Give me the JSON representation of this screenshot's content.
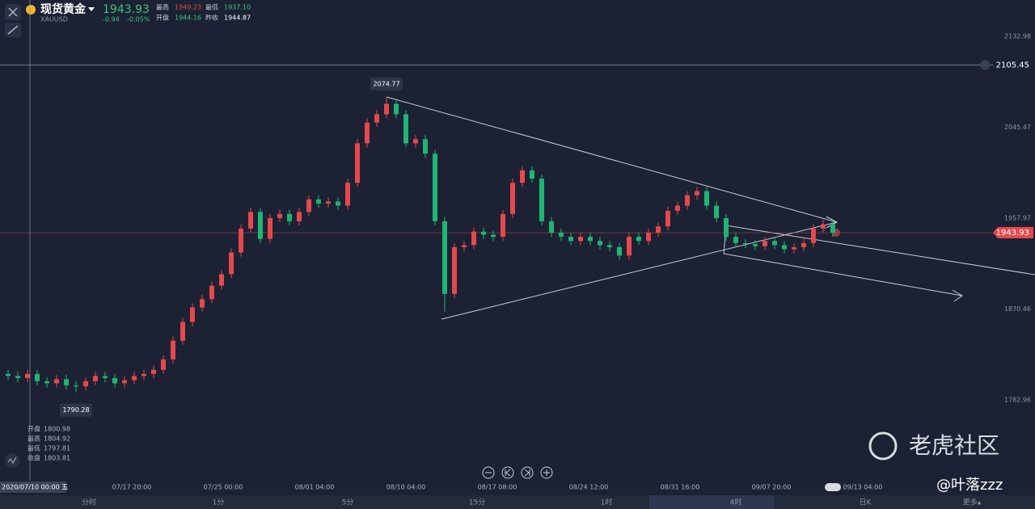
{
  "header": {
    "name": "现货黄金",
    "symbol": "XAUUSD",
    "price": "1943.93",
    "change": "-0.94",
    "change_pct": "-0.05%",
    "stats": [
      {
        "label": "最高",
        "value": "1949.23"
      },
      {
        "label": "开盘",
        "value": "1944.16"
      },
      {
        "label": "最低",
        "value": "1937.10"
      },
      {
        "label": "昨收",
        "value": "1944.87"
      }
    ]
  },
  "crosshair": {
    "date": "2020/07/10 00:00 五",
    "rows": [
      {
        "label": "开盘",
        "value": "1800.98"
      },
      {
        "label": "最高",
        "value": "1804.92"
      },
      {
        "label": "最低",
        "value": "1797.81"
      },
      {
        "label": "收盘",
        "value": "1803.81"
      }
    ]
  },
  "xlabels": [
    "07/17 20:00",
    "07/25 00:00",
    "08/01 04:00",
    "08/10 04:00",
    "08/17 08:00",
    "08/24 12:00",
    "08/31 16:00",
    "09/07 20:00",
    "09/13 04:00"
  ],
  "tabs": [
    "分时",
    "1分",
    "5分",
    "15分",
    "1时",
    "4时",
    "日K",
    "更多▴"
  ],
  "watermark": "老虎社区",
  "author": "@叶落zzz",
  "chart_data": {
    "type": "candlestick",
    "up_color": "#e5484d",
    "down_color": "#1fb574",
    "ylim": [
      1705.18,
      2167.98
    ],
    "yticks": [
      1782.96,
      1870.46,
      1957.97,
      2045.47,
      2132.98
    ],
    "alert_level": 2105.45,
    "last_price": 1943.93,
    "annotations": [
      {
        "value": 2074.77,
        "index": 39
      },
      {
        "value": 1790.28,
        "index": 7
      }
    ],
    "open": [
      1808,
      1806,
      1804,
      1808,
      1801,
      1799,
      1803,
      1797,
      1796,
      1801,
      1806,
      1804,
      1799,
      1802,
      1806,
      1808,
      1812,
      1822,
      1840,
      1858,
      1872,
      1880,
      1893,
      1904,
      1925,
      1948,
      1964,
      1938,
      1958,
      1962,
      1955,
      1964,
      1976,
      1972,
      1974,
      1970,
      1992,
      2030,
      2050,
      2058,
      2068,
      2058,
      2030,
      2034,
      2020,
      1955,
      1885,
      1930,
      1932,
      1945,
      1942,
      1940,
      1962,
      1992,
      2004,
      1996,
      1955,
      1944,
      1940,
      1936,
      1940,
      1936,
      1932,
      1930,
      1922,
      1940,
      1936,
      1944,
      1950,
      1965,
      1970,
      1980,
      1984,
      1970,
      1958,
      1940,
      1934,
      1933,
      1931,
      1936,
      1932,
      1928,
      1930,
      1934,
      1948,
      1952
    ],
    "high": [
      1812,
      1810,
      1812,
      1812,
      1805,
      1807,
      1807,
      1801,
      1805,
      1810,
      1810,
      1808,
      1806,
      1810,
      1812,
      1816,
      1826,
      1844,
      1862,
      1876,
      1884,
      1897,
      1908,
      1929,
      1952,
      1968,
      1968,
      1962,
      1966,
      1966,
      1968,
      1980,
      1980,
      1978,
      1978,
      1996,
      2034,
      2054,
      2062,
      2074.77,
      2072,
      2062,
      2038,
      2038,
      2024,
      1959,
      1934,
      1936,
      1949,
      1949,
      1946,
      1966,
      1996,
      2008,
      2008,
      2000,
      1959,
      1948,
      1944,
      1944,
      1944,
      1940,
      1936,
      1934,
      1944,
      1944,
      1948,
      1954,
      1969,
      1974,
      1984,
      1988,
      1988,
      1974,
      1962,
      1944,
      1938,
      1937,
      1940,
      1940,
      1936,
      1934,
      1938,
      1952,
      1956,
      1956
    ],
    "low": [
      1802,
      1800,
      1800,
      1797,
      1795,
      1795,
      1793,
      1790.28,
      1792,
      1797,
      1800,
      1795,
      1795,
      1798,
      1802,
      1804,
      1808,
      1818,
      1836,
      1854,
      1868,
      1876,
      1889,
      1900,
      1921,
      1944,
      1934,
      1934,
      1954,
      1951,
      1951,
      1960,
      1968,
      1968,
      1966,
      1966,
      1988,
      2026,
      2046,
      2054,
      2054,
      2026,
      2026,
      2016,
      1951,
      1868,
      1881,
      1926,
      1928,
      1938,
      1936,
      1936,
      1958,
      1988,
      1992,
      1951,
      1940,
      1936,
      1932,
      1932,
      1932,
      1928,
      1926,
      1918,
      1918,
      1932,
      1932,
      1940,
      1946,
      1961,
      1966,
      1976,
      1966,
      1954,
      1936,
      1930,
      1929,
      1927,
      1927,
      1928,
      1924,
      1924,
      1926,
      1930,
      1944,
      1940
    ],
    "close": [
      1806,
      1804,
      1808,
      1801,
      1799,
      1803,
      1797,
      1796,
      1801,
      1806,
      1804,
      1799,
      1802,
      1806,
      1808,
      1812,
      1822,
      1840,
      1858,
      1872,
      1880,
      1893,
      1904,
      1925,
      1948,
      1964,
      1938,
      1958,
      1962,
      1955,
      1964,
      1976,
      1972,
      1974,
      1970,
      1992,
      2030,
      2050,
      2058,
      2068,
      2058,
      2030,
      2034,
      2020,
      1955,
      1885,
      1930,
      1932,
      1945,
      1942,
      1940,
      1962,
      1992,
      2004,
      1996,
      1955,
      1944,
      1940,
      1936,
      1940,
      1936,
      1932,
      1930,
      1922,
      1940,
      1936,
      1944,
      1950,
      1965,
      1970,
      1980,
      1984,
      1970,
      1958,
      1940,
      1934,
      1933,
      1931,
      1936,
      1932,
      1928,
      1930,
      1934,
      1948,
      1952,
      1943.93
    ]
  }
}
